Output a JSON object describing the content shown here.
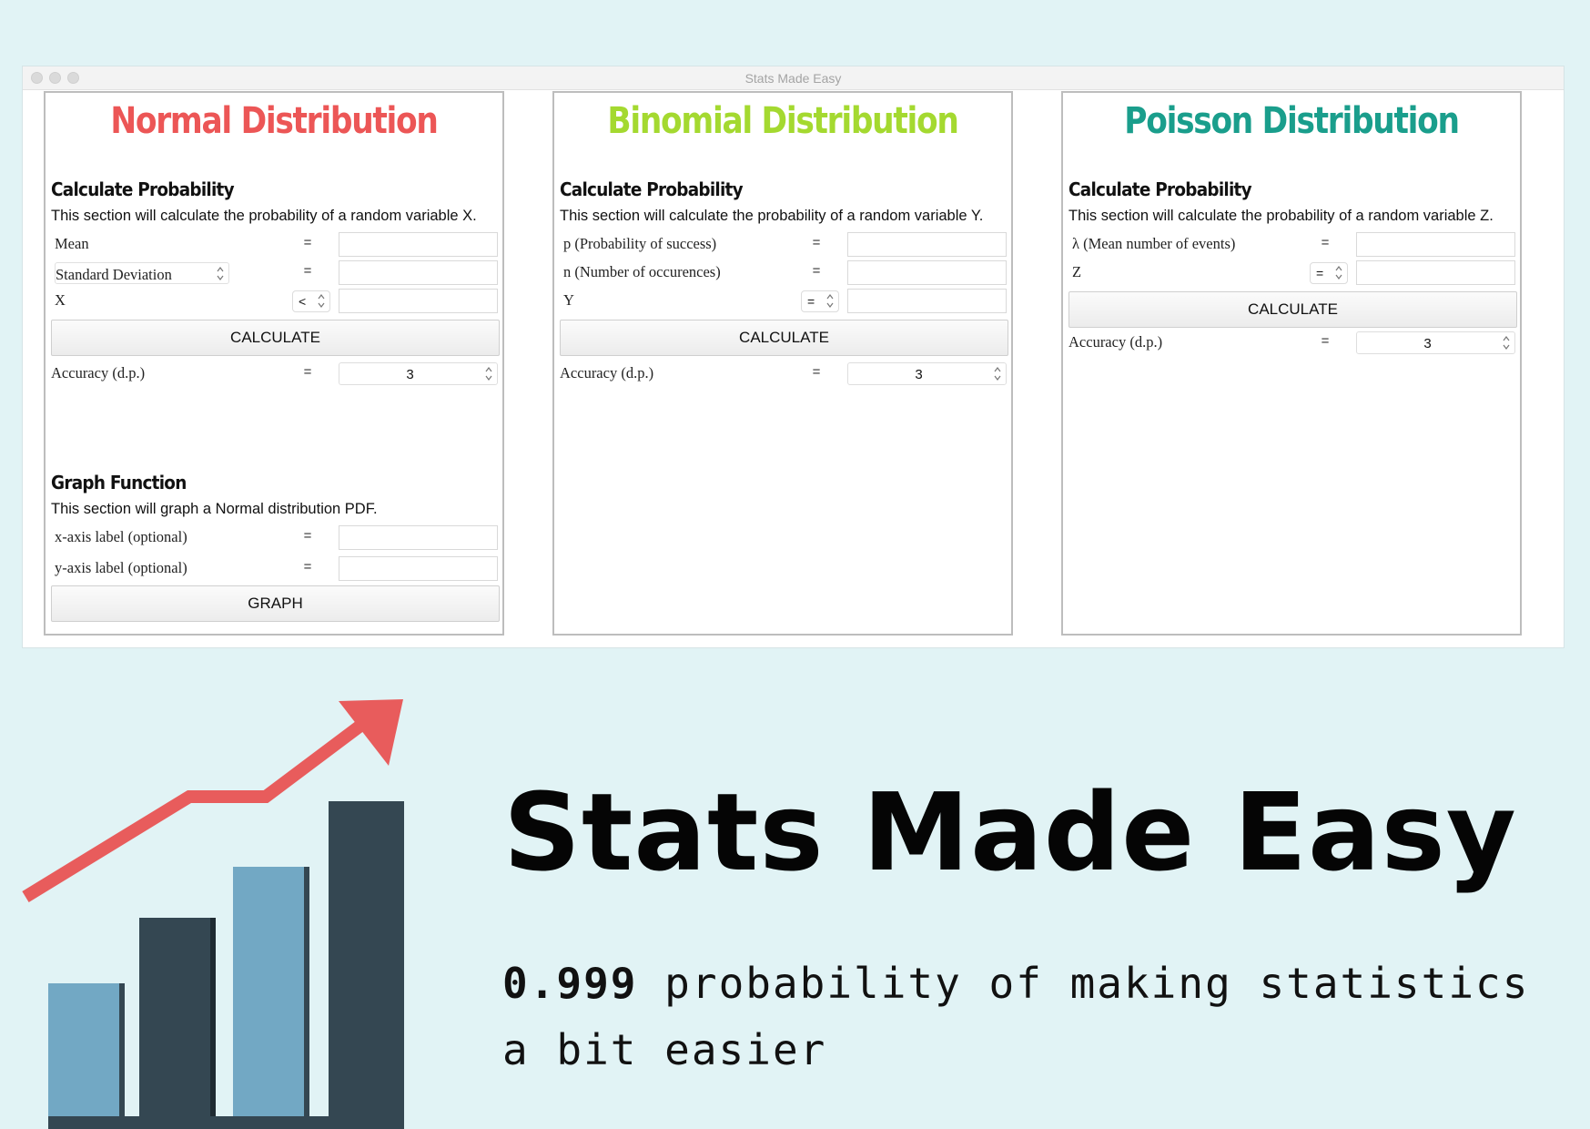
{
  "window": {
    "title": "Stats Made Easy"
  },
  "colors": {
    "normal": "#ec5656",
    "binomial": "#a4d930",
    "poisson": "#1a9e8c",
    "bar_light": "#72a8c4",
    "bar_dark": "#344752",
    "arrow": "#e85c5c"
  },
  "normal": {
    "title": "Normal Distribution",
    "section_title": "Calculate Probability",
    "section_desc": "This section will calculate the probability of a random variable X.",
    "rows": [
      {
        "label": "Mean",
        "eq": "="
      },
      {
        "label": "Standard Deviation",
        "eq": "="
      },
      {
        "label": "X",
        "operator": "<"
      }
    ],
    "calculate_label": "CALCULATE",
    "accuracy_label": "Accuracy (d.p.)",
    "accuracy_eq": "=",
    "accuracy_value": "3",
    "graph_title": "Graph Function",
    "graph_desc": "This section will graph a Normal distribution PDF.",
    "graph_rows": [
      {
        "label": "x-axis label (optional)",
        "eq": "="
      },
      {
        "label": "y-axis label (optional)",
        "eq": "="
      }
    ],
    "graph_label": "GRAPH"
  },
  "binomial": {
    "title": "Binomial Distribution",
    "section_title": "Calculate Probability",
    "section_desc": "This section will calculate the probability of a random variable Y.",
    "rows": [
      {
        "label": "p (Probability of success)",
        "eq": "="
      },
      {
        "label": "n (Number of occurences)",
        "eq": "="
      },
      {
        "label": "Y",
        "operator": "="
      }
    ],
    "calculate_label": "CALCULATE",
    "accuracy_label": "Accuracy (d.p.)",
    "accuracy_eq": "=",
    "accuracy_value": "3"
  },
  "poisson": {
    "title": "Poisson Distribution",
    "section_title": "Calculate Probability",
    "section_desc": "This section will calculate the probability of a random variable Z.",
    "rows": [
      {
        "label": "λ (Mean number of events)",
        "eq": "="
      },
      {
        "label": "Z",
        "operator": "="
      }
    ],
    "calculate_label": "CALCULATE",
    "accuracy_label": "Accuracy (d.p.)",
    "accuracy_eq": "=",
    "accuracy_value": "3"
  },
  "hero": {
    "title": "Stats Made Easy",
    "tagline_number": "0.999",
    "tagline_rest": " probability of making statistics",
    "tagline_line2": "a bit easier"
  },
  "icons": {
    "window_controls": "traffic-light-icon",
    "spinner": "updown-arrows-icon",
    "illustration": "bar-chart-growth-icon"
  }
}
